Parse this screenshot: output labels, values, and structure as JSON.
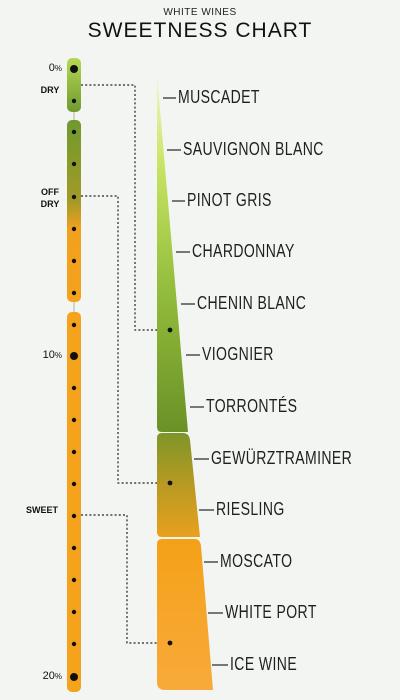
{
  "header": {
    "subtitle": "WHITE WINES",
    "title": "SWEETNESS CHART"
  },
  "scale": {
    "percent_labels": [
      {
        "value": "0",
        "unit": "%"
      },
      {
        "value": "10",
        "unit": "%"
      },
      {
        "value": "20",
        "unit": "%"
      }
    ],
    "zones": [
      {
        "line1": "DRY",
        "line2": ""
      },
      {
        "line1": "OFF",
        "line2": "DRY"
      },
      {
        "line1": "SWEET",
        "line2": ""
      }
    ]
  },
  "wines": [
    "MUSCADET",
    "SAUVIGNON BLANC",
    "PINOT GRIS",
    "CHARDONNAY",
    "CHENIN BLANC",
    "VIOGNIER",
    "TORRONTÉS",
    "GEWÜRZTRAMINER",
    "RIESLING",
    "MOSCATO",
    "WHITE PORT",
    "ICE WINE"
  ],
  "colors": {
    "dry_green_top": "#c5e35f",
    "dry_green_bottom": "#6f9a2e",
    "off_dry_mid": "#a89a2a",
    "sweet_orange": "#f5a21c",
    "dot": "#111111",
    "background": "#f3f5f2"
  }
}
